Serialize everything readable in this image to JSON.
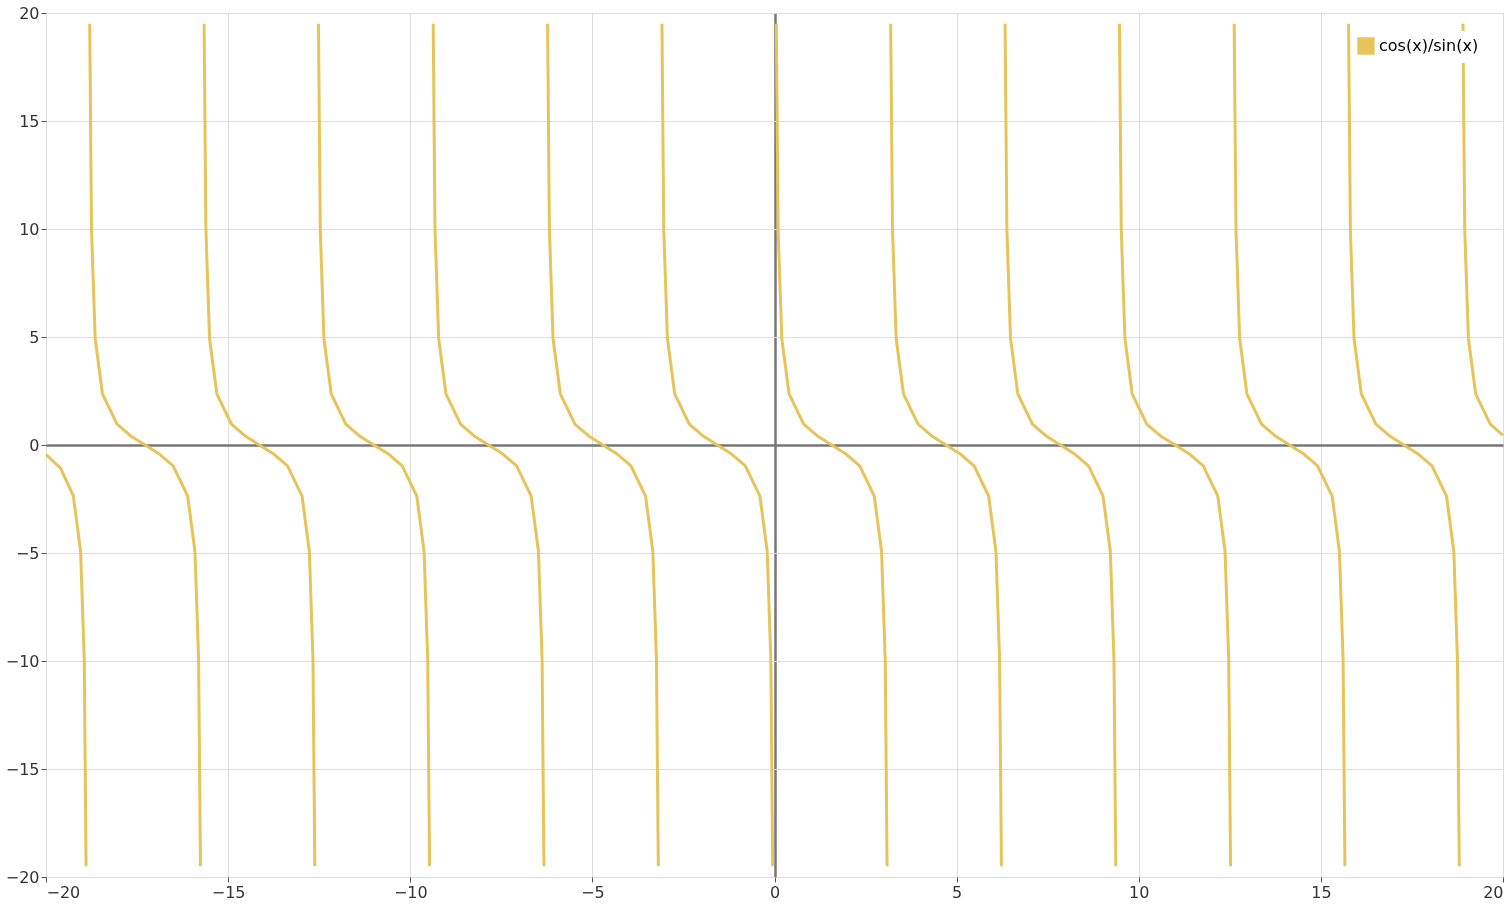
{
  "chart_data": {
    "type": "line",
    "x": [
      -20.0,
      -19.6,
      -19.25,
      -19.05,
      -18.95,
      -18.9,
      -18.85,
      -18.8,
      -18.75,
      -18.65,
      -18.45,
      -18.05,
      -17.65,
      -17.28,
      -16.91,
      -16.51,
      -16.11,
      -15.91,
      -15.81,
      -15.76,
      -15.71,
      -15.66,
      -15.61,
      -15.51,
      -15.31,
      -14.91,
      -14.51,
      -14.14,
      -13.77,
      -13.37,
      -12.97,
      -12.77,
      -12.67,
      -12.62,
      -12.57,
      -12.52,
      -12.47,
      -12.37,
      -12.17,
      -11.77,
      -11.37,
      -11.0,
      -10.62,
      -10.22,
      -9.82,
      -9.62,
      -9.52,
      -9.47,
      -9.42,
      -9.37,
      -9.32,
      -9.22,
      -9.02,
      -8.62,
      -8.22,
      -7.85,
      -7.48,
      -7.08,
      -6.68,
      -6.48,
      -6.38,
      -6.33,
      -6.28,
      -6.23,
      -6.18,
      -6.08,
      -5.88,
      -5.48,
      -5.08,
      -4.71,
      -4.34,
      -3.94,
      -3.54,
      -3.34,
      -3.24,
      -3.19,
      -3.14,
      -3.09,
      -3.04,
      -2.94,
      -2.74,
      -2.34,
      -1.94,
      -1.57,
      -1.2,
      -0.8,
      -0.4,
      -0.2,
      -0.1,
      -0.05,
      0.0,
      0.05,
      0.1,
      0.2,
      0.4,
      0.8,
      1.2,
      1.57,
      1.94,
      2.34,
      2.74,
      2.94,
      3.04,
      3.09,
      3.14,
      3.19,
      3.24,
      3.34,
      3.54,
      3.94,
      4.34,
      4.71,
      5.08,
      5.48,
      5.88,
      6.08,
      6.18,
      6.23,
      6.28,
      6.33,
      6.38,
      6.48,
      6.68,
      7.08,
      7.48,
      7.85,
      8.22,
      8.62,
      9.02,
      9.22,
      9.32,
      9.37,
      9.42,
      9.47,
      9.52,
      9.62,
      9.82,
      10.22,
      10.62,
      11.0,
      11.37,
      11.77,
      12.17,
      12.37,
      12.47,
      12.52,
      12.57,
      12.62,
      12.67,
      12.77,
      12.97,
      13.37,
      13.77,
      14.14,
      14.51,
      14.91,
      15.31,
      15.51,
      15.61,
      15.66,
      15.71,
      15.76,
      15.81,
      15.91,
      16.11,
      16.51,
      16.91,
      17.28,
      17.65,
      18.05,
      18.45,
      18.65,
      18.75,
      18.8,
      18.85,
      18.9,
      18.95,
      19.05,
      19.25,
      19.65,
      20.0
    ],
    "series": [
      {
        "name": "cos(x)/sin(x)",
        "color": "#e8c35a",
        "values": [
          -0.44,
          -1.07,
          -2.36,
          -4.92,
          -9.9,
          -19.5,
          null,
          19.5,
          9.97,
          4.93,
          2.37,
          0.97,
          0.39,
          0,
          -0.39,
          -0.97,
          -2.37,
          -4.93,
          -9.97,
          -19.5,
          null,
          19.5,
          9.97,
          4.93,
          2.37,
          0.97,
          0.39,
          0,
          -0.39,
          -0.97,
          -2.37,
          -4.93,
          -9.97,
          -19.5,
          null,
          19.5,
          9.97,
          4.93,
          2.37,
          0.97,
          0.39,
          0,
          -0.39,
          -0.97,
          -2.37,
          -4.93,
          -9.97,
          -19.5,
          null,
          19.5,
          9.97,
          4.93,
          2.37,
          0.97,
          0.39,
          0,
          -0.39,
          -0.97,
          -2.37,
          -4.93,
          -9.97,
          -19.5,
          null,
          19.5,
          9.97,
          4.93,
          2.37,
          0.97,
          0.39,
          0,
          -0.39,
          -0.97,
          -2.37,
          -4.93,
          -9.97,
          -19.5,
          null,
          19.5,
          9.97,
          4.93,
          2.37,
          0.97,
          0.39,
          0,
          -0.39,
          -0.97,
          -2.37,
          -4.93,
          -9.97,
          -19.5,
          null,
          19.5,
          9.97,
          4.93,
          2.37,
          0.97,
          0.39,
          0,
          -0.39,
          -0.97,
          -2.37,
          -4.93,
          -9.97,
          -19.5,
          null,
          19.5,
          9.97,
          4.93,
          2.37,
          0.97,
          0.39,
          0,
          -0.39,
          -0.97,
          -2.37,
          -4.93,
          -9.97,
          -19.5,
          null,
          19.5,
          9.97,
          4.93,
          2.37,
          0.97,
          0.39,
          0,
          -0.39,
          -0.97,
          -2.37,
          -4.93,
          -9.97,
          -19.5,
          null,
          19.5,
          9.97,
          4.93,
          2.37,
          0.97,
          0.39,
          0,
          -0.39,
          -0.97,
          -2.37,
          -4.93,
          -9.97,
          -19.5,
          null,
          19.5,
          9.97,
          4.93,
          2.37,
          0.97,
          0.39,
          0,
          -0.39,
          -0.97,
          -2.37,
          -4.93,
          -9.97,
          -19.5,
          null,
          19.5,
          9.97,
          4.93,
          2.37,
          0.97,
          0.39,
          0,
          -0.39,
          -0.97,
          -2.37,
          -4.93,
          -9.97,
          -19.5,
          null,
          19.5,
          9.97,
          4.93,
          2.37,
          0.97,
          0.45
        ]
      }
    ],
    "xlim": [
      -20,
      20
    ],
    "ylim": [
      -20,
      20
    ],
    "xticks": [
      -20,
      -15,
      -10,
      -5,
      0,
      5,
      10,
      15,
      20
    ],
    "yticks": [
      -20,
      -15,
      -10,
      -5,
      0,
      5,
      10,
      15,
      20
    ],
    "grid": true,
    "legend": "top right",
    "marker": "none",
    "line_style": "solid"
  }
}
